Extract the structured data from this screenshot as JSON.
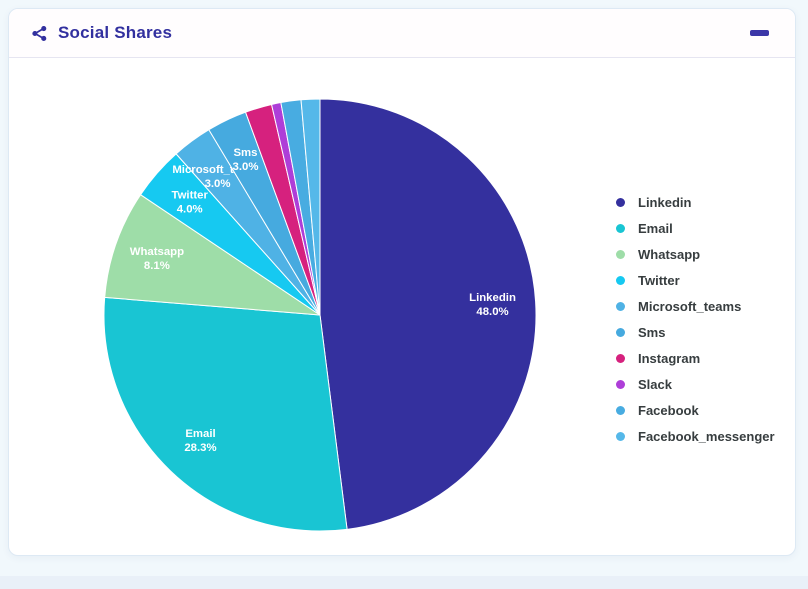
{
  "card": {
    "title": "Social Shares"
  },
  "chart_data": {
    "type": "pie",
    "title": "Social Shares",
    "legend_position": "right",
    "start_angle_deg": 0,
    "direction": "clockwise",
    "label_format": "name + percent, shown only for slices >= 3%",
    "series": [
      {
        "name": "Linkedin",
        "value": 48.0,
        "percent_label": "48.0%",
        "color": "#34309e",
        "show_label": true
      },
      {
        "name": "Email",
        "value": 28.3,
        "percent_label": "28.3%",
        "color": "#19c5d3",
        "show_label": true
      },
      {
        "name": "Whatsapp",
        "value": 8.1,
        "percent_label": "8.1%",
        "color": "#9edda8",
        "show_label": true
      },
      {
        "name": "Twitter",
        "value": 4.0,
        "percent_label": "4.0%",
        "color": "#16c9f1",
        "show_label": true
      },
      {
        "name": "Microsoft_teams",
        "value": 3.0,
        "percent_label": "3.0%",
        "color": "#4fb2e5",
        "show_label": true
      },
      {
        "name": "Sms",
        "value": 3.0,
        "percent_label": "3.0%",
        "color": "#46aadf",
        "show_label": true
      },
      {
        "name": "Instagram",
        "value": 2.0,
        "color": "#d6217e",
        "show_label": false
      },
      {
        "name": "Slack",
        "value": 0.7,
        "color": "#ae3ed8",
        "show_label": false
      },
      {
        "name": "Facebook",
        "value": 1.5,
        "color": "#48ace1",
        "show_label": false
      },
      {
        "name": "Facebook_messenger",
        "value": 1.4,
        "color": "#55b8e9",
        "show_label": false
      }
    ],
    "colors": {
      "title_text": "#32309f",
      "legend_text": "#373d3f",
      "slice_stroke": "#ffffff"
    }
  }
}
